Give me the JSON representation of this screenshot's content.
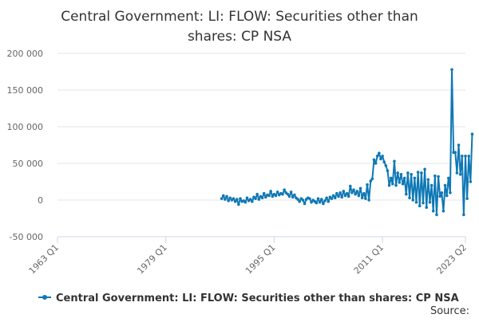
{
  "chart_data": {
    "type": "line",
    "title": "Central Government: LI: FLOW: Securities other than shares: CP NSA",
    "title_lines": [
      "Central Government: LI: FLOW: Securities other than",
      "shares: CP NSA"
    ],
    "x_axis": {
      "scale": "time (quarterly)",
      "range": [
        "1963 Q1",
        "2023 Q2"
      ],
      "tick_labels": [
        "1963 Q1",
        "1979 Q1",
        "1995 Q1",
        "2011 Q1",
        "2023 Q2"
      ],
      "tick_positions_years": [
        1963.0,
        1979.0,
        1995.0,
        2011.0,
        2023.25
      ]
    },
    "y_axis": {
      "range": [
        -50000,
        200000
      ],
      "tick_values": [
        -50000,
        0,
        50000,
        100000,
        150000,
        200000
      ],
      "tick_labels": [
        "-50 000",
        "0",
        "50 000",
        "100 000",
        "150 000",
        "200 000"
      ]
    },
    "grid": true,
    "legend_position": "bottom",
    "source_label": "Source:",
    "series": [
      {
        "name": "Central Government: LI: FLOW: Securities other than shares: CP NSA",
        "color": "#0f78b5",
        "points": [
          [
            1987.25,
            2000
          ],
          [
            1987.5,
            6000
          ],
          [
            1987.75,
            1000
          ],
          [
            1988.0,
            5000
          ],
          [
            1988.25,
            -1000
          ],
          [
            1988.5,
            3000
          ],
          [
            1988.75,
            0
          ],
          [
            1989.0,
            2000
          ],
          [
            1989.25,
            -2000
          ],
          [
            1989.5,
            1000
          ],
          [
            1989.75,
            -6000
          ],
          [
            1990.0,
            2000
          ],
          [
            1990.25,
            -2000
          ],
          [
            1990.5,
            -1000
          ],
          [
            1990.75,
            -3000
          ],
          [
            1991.0,
            3000
          ],
          [
            1991.25,
            -1000
          ],
          [
            1991.5,
            1000
          ],
          [
            1991.75,
            -2000
          ],
          [
            1992.0,
            4000
          ],
          [
            1992.25,
            2000
          ],
          [
            1992.5,
            8000
          ],
          [
            1992.75,
            1000
          ],
          [
            1993.0,
            5000
          ],
          [
            1993.25,
            3000
          ],
          [
            1993.5,
            9000
          ],
          [
            1993.75,
            4000
          ],
          [
            1994.0,
            7000
          ],
          [
            1994.25,
            6000
          ],
          [
            1994.5,
            12000
          ],
          [
            1994.75,
            5000
          ],
          [
            1995.0,
            8000
          ],
          [
            1995.25,
            6000
          ],
          [
            1995.5,
            11000
          ],
          [
            1995.75,
            7000
          ],
          [
            1996.0,
            9000
          ],
          [
            1996.25,
            8000
          ],
          [
            1996.5,
            14000
          ],
          [
            1996.75,
            10000
          ],
          [
            1997.0,
            8000
          ],
          [
            1997.25,
            5000
          ],
          [
            1997.5,
            11000
          ],
          [
            1997.75,
            4000
          ],
          [
            1998.0,
            7000
          ],
          [
            1998.25,
            3000
          ],
          [
            1998.5,
            1000
          ],
          [
            1998.75,
            -2000
          ],
          [
            1999.0,
            2000
          ],
          [
            1999.25,
            0
          ],
          [
            1999.5,
            -5000
          ],
          [
            1999.75,
            1000
          ],
          [
            2000.0,
            3000
          ],
          [
            2000.25,
            2000
          ],
          [
            2000.5,
            -3000
          ],
          [
            2000.75,
            0
          ],
          [
            2001.0,
            -2000
          ],
          [
            2001.25,
            -4000
          ],
          [
            2001.5,
            2000
          ],
          [
            2001.75,
            -3000
          ],
          [
            2002.0,
            1000
          ],
          [
            2002.25,
            -5000
          ],
          [
            2002.5,
            -1000
          ],
          [
            2002.75,
            3000
          ],
          [
            2003.0,
            -2000
          ],
          [
            2003.25,
            4000
          ],
          [
            2003.5,
            2000
          ],
          [
            2003.75,
            6000
          ],
          [
            2004.0,
            3000
          ],
          [
            2004.25,
            9000
          ],
          [
            2004.5,
            5000
          ],
          [
            2004.75,
            10000
          ],
          [
            2005.0,
            4000
          ],
          [
            2005.25,
            12000
          ],
          [
            2005.5,
            6000
          ],
          [
            2005.75,
            9000
          ],
          [
            2006.0,
            5000
          ],
          [
            2006.25,
            19000
          ],
          [
            2006.5,
            10000
          ],
          [
            2006.75,
            14000
          ],
          [
            2007.0,
            8000
          ],
          [
            2007.25,
            12000
          ],
          [
            2007.5,
            6000
          ],
          [
            2007.75,
            16000
          ],
          [
            2008.0,
            3000
          ],
          [
            2008.25,
            9000
          ],
          [
            2008.5,
            2000
          ],
          [
            2008.75,
            21000
          ],
          [
            2009.0,
            0
          ],
          [
            2009.25,
            26000
          ],
          [
            2009.5,
            29000
          ],
          [
            2009.75,
            55000
          ],
          [
            2010.0,
            50000
          ],
          [
            2010.25,
            60000
          ],
          [
            2010.5,
            64000
          ],
          [
            2010.75,
            56000
          ],
          [
            2011.0,
            60000
          ],
          [
            2011.25,
            52000
          ],
          [
            2011.5,
            47000
          ],
          [
            2011.75,
            40000
          ],
          [
            2012.0,
            20000
          ],
          [
            2012.25,
            30000
          ],
          [
            2012.5,
            22000
          ],
          [
            2012.75,
            53000
          ],
          [
            2013.0,
            20000
          ],
          [
            2013.25,
            37000
          ],
          [
            2013.5,
            24000
          ],
          [
            2013.75,
            35000
          ],
          [
            2014.0,
            22000
          ],
          [
            2014.25,
            30000
          ],
          [
            2014.5,
            8000
          ],
          [
            2014.75,
            37000
          ],
          [
            2015.0,
            3000
          ],
          [
            2015.25,
            35000
          ],
          [
            2015.5,
            0
          ],
          [
            2015.75,
            30000
          ],
          [
            2016.0,
            -3000
          ],
          [
            2016.25,
            38000
          ],
          [
            2016.5,
            -8000
          ],
          [
            2016.75,
            37000
          ],
          [
            2017.0,
            -4000
          ],
          [
            2017.25,
            42000
          ],
          [
            2017.5,
            -10000
          ],
          [
            2017.75,
            28000
          ],
          [
            2018.0,
            -3000
          ],
          [
            2018.25,
            20000
          ],
          [
            2018.5,
            -15000
          ],
          [
            2018.75,
            33000
          ],
          [
            2019.0,
            -20000
          ],
          [
            2019.25,
            32000
          ],
          [
            2019.5,
            5000
          ],
          [
            2019.75,
            10000
          ],
          [
            2020.0,
            -15000
          ],
          [
            2020.25,
            20000
          ],
          [
            2020.5,
            6000
          ],
          [
            2020.75,
            30000
          ],
          [
            2021.0,
            10000
          ],
          [
            2021.25,
            178000
          ],
          [
            2021.5,
            65000
          ],
          [
            2021.75,
            65000
          ],
          [
            2022.0,
            37000
          ],
          [
            2022.25,
            75000
          ],
          [
            2022.5,
            35000
          ],
          [
            2022.75,
            60000
          ],
          [
            2023.0,
            -20000
          ],
          [
            2023.25,
            60000
          ],
          [
            2023.5,
            2000
          ],
          [
            2023.75,
            60000
          ],
          [
            2024.0,
            25000
          ],
          [
            2024.25,
            90000
          ]
        ]
      }
    ]
  }
}
